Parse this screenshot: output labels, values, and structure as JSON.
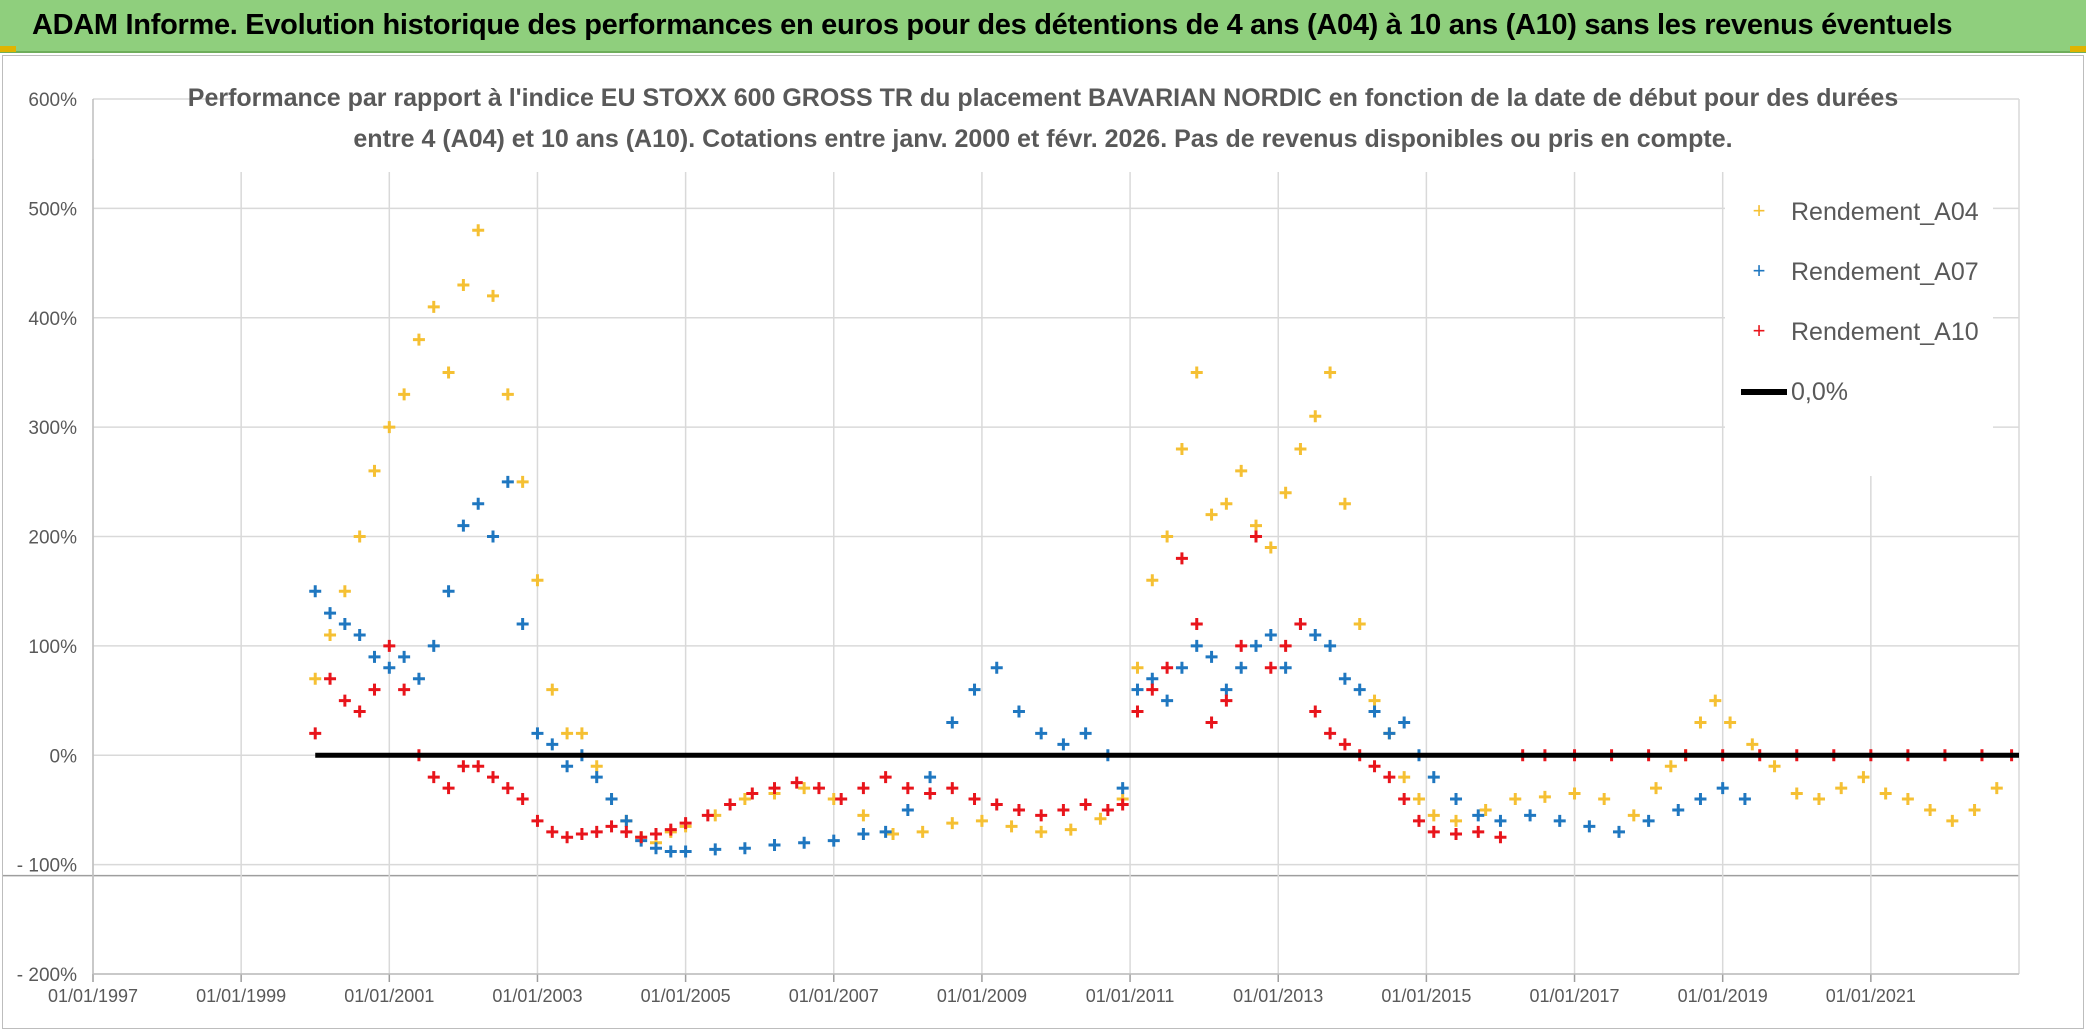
{
  "banner": {
    "title": "ADAM Informe. Evolution historique des performances en euros pour des détentions de 4 ans (A04) à 10 ans (A10) sans les revenus éventuels"
  },
  "colors": {
    "A04": "#f5c033",
    "A07": "#1f77c0",
    "A10": "#e8141b",
    "zero": "#000000",
    "grid": "#d9d9d9",
    "banner": "#8fcf7d"
  },
  "chart_data": {
    "type": "scatter",
    "title_lines": [
      "Performance par rapport à l'indice EU STOXX 600 GROSS TR  du placement BAVARIAN NORDIC en fonction de la date de début pour des durées",
      "entre 4 (A04) et 10 ans (A10). Cotations entre janv. 2000 et févr. 2026. Pas de revenus disponibles ou pris en compte."
    ],
    "xlabel": "",
    "ylabel": "",
    "x_range": [
      1997.0,
      2023.0
    ],
    "ylim": [
      -200,
      600
    ],
    "y_ticks": [
      {
        "v": 600,
        "label": "600%"
      },
      {
        "v": 500,
        "label": "500%"
      },
      {
        "v": 400,
        "label": "400%"
      },
      {
        "v": 300,
        "label": "300%"
      },
      {
        "v": 200,
        "label": "200%"
      },
      {
        "v": 100,
        "label": "100%"
      },
      {
        "v": 0,
        "label": "0%"
      },
      {
        "v": -100,
        "label": "- 100%"
      },
      {
        "v": -200,
        "label": "- 200%"
      }
    ],
    "x_ticks": [
      {
        "v": 1997.0,
        "label": "01/01/1997"
      },
      {
        "v": 1999.0,
        "label": "01/01/1999"
      },
      {
        "v": 2001.0,
        "label": "01/01/2001"
      },
      {
        "v": 2003.0,
        "label": "01/01/2003"
      },
      {
        "v": 2005.0,
        "label": "01/01/2005"
      },
      {
        "v": 2007.0,
        "label": "01/01/2007"
      },
      {
        "v": 2009.0,
        "label": "01/01/2009"
      },
      {
        "v": 2011.0,
        "label": "01/01/2011"
      },
      {
        "v": 2013.0,
        "label": "01/01/2013"
      },
      {
        "v": 2015.0,
        "label": "01/01/2015"
      },
      {
        "v": 2017.0,
        "label": "01/01/2017"
      },
      {
        "v": 2019.0,
        "label": "01/01/2019"
      },
      {
        "v": 2021.0,
        "label": "01/01/2021"
      }
    ],
    "legend": [
      {
        "key": "A04",
        "label": "Rendement_A04",
        "marker": "plus"
      },
      {
        "key": "A07",
        "label": "Rendement_A07",
        "marker": "plus"
      },
      {
        "key": "A10",
        "label": "Rendement_A10",
        "marker": "plus"
      },
      {
        "key": "zero",
        "label": "0,0%",
        "marker": "line"
      }
    ],
    "series": [
      {
        "name": "Rendement_A04",
        "key": "A04",
        "x": [
          2000.0,
          2000.2,
          2000.4,
          2000.6,
          2000.8,
          2001.0,
          2001.2,
          2001.4,
          2001.6,
          2001.8,
          2002.0,
          2002.2,
          2002.4,
          2002.6,
          2002.8,
          2003.0,
          2003.2,
          2003.4,
          2003.6,
          2003.8,
          2004.0,
          2004.2,
          2004.4,
          2004.6,
          2004.8,
          2005.0,
          2005.4,
          2005.8,
          2006.2,
          2006.6,
          2007.0,
          2007.4,
          2007.8,
          2008.2,
          2008.6,
          2009.0,
          2009.4,
          2009.8,
          2010.2,
          2010.6,
          2010.9,
          2011.1,
          2011.3,
          2011.5,
          2011.7,
          2011.9,
          2012.1,
          2012.3,
          2012.5,
          2012.7,
          2012.9,
          2013.1,
          2013.3,
          2013.5,
          2013.7,
          2013.9,
          2014.1,
          2014.3,
          2014.5,
          2014.7,
          2014.9,
          2015.1,
          2015.4,
          2015.8,
          2016.2,
          2016.6,
          2017.0,
          2017.4,
          2017.8,
          2018.1,
          2018.3,
          2018.5,
          2018.7,
          2018.9,
          2019.1,
          2019.4,
          2019.7,
          2020.0,
          2020.3,
          2020.6,
          2020.9,
          2021.2,
          2021.5,
          2021.8,
          2022.1,
          2022.4,
          2022.7
        ],
        "values": [
          70,
          110,
          150,
          200,
          260,
          300,
          330,
          380,
          410,
          350,
          430,
          480,
          420,
          330,
          250,
          160,
          60,
          20,
          20,
          -10,
          -40,
          -60,
          -75,
          -80,
          -70,
          -65,
          -55,
          -40,
          -35,
          -30,
          -40,
          -55,
          -72,
          -70,
          -62,
          -60,
          -65,
          -70,
          -68,
          -58,
          -40,
          80,
          160,
          200,
          280,
          350,
          220,
          230,
          260,
          210,
          190,
          240,
          280,
          310,
          350,
          230,
          120,
          50,
          20,
          -20,
          -40,
          -55,
          -60,
          -50,
          -40,
          -38,
          -35,
          -40,
          -55,
          -30,
          -10,
          0,
          30,
          50,
          30,
          10,
          -10,
          -35,
          -40,
          -30,
          -20,
          -35,
          -40,
          -50,
          -60,
          -50,
          -30
        ]
      },
      {
        "name": "Rendement_A07",
        "key": "A07",
        "x": [
          2000.0,
          2000.2,
          2000.4,
          2000.6,
          2000.8,
          2001.0,
          2001.2,
          2001.4,
          2001.6,
          2001.8,
          2002.0,
          2002.2,
          2002.4,
          2002.6,
          2002.8,
          2003.0,
          2003.2,
          2003.4,
          2003.6,
          2003.8,
          2004.0,
          2004.2,
          2004.4,
          2004.6,
          2004.8,
          2005.0,
          2005.4,
          2005.8,
          2006.2,
          2006.6,
          2007.0,
          2007.4,
          2007.7,
          2008.0,
          2008.3,
          2008.6,
          2008.9,
          2009.2,
          2009.5,
          2009.8,
          2010.1,
          2010.4,
          2010.7,
          2010.9,
          2011.1,
          2011.3,
          2011.5,
          2011.7,
          2011.9,
          2012.1,
          2012.3,
          2012.5,
          2012.7,
          2012.9,
          2013.1,
          2013.3,
          2013.5,
          2013.7,
          2013.9,
          2014.1,
          2014.3,
          2014.5,
          2014.7,
          2014.9,
          2015.1,
          2015.4,
          2015.7,
          2016.0,
          2016.4,
          2016.8,
          2017.2,
          2017.6,
          2018.0,
          2018.4,
          2018.7,
          2019.0,
          2019.3
        ],
        "values": [
          150,
          130,
          120,
          110,
          90,
          80,
          90,
          70,
          100,
          150,
          210,
          230,
          200,
          250,
          120,
          20,
          10,
          -10,
          0,
          -20,
          -40,
          -60,
          -78,
          -85,
          -88,
          -88,
          -86,
          -85,
          -82,
          -80,
          -78,
          -72,
          -70,
          -50,
          -20,
          30,
          60,
          80,
          40,
          20,
          10,
          20,
          0,
          -30,
          60,
          70,
          50,
          80,
          100,
          90,
          60,
          80,
          100,
          110,
          80,
          120,
          110,
          100,
          70,
          60,
          40,
          20,
          30,
          0,
          -20,
          -40,
          -55,
          -60,
          -55,
          -60,
          -65,
          -70,
          -60,
          -50,
          -40,
          -30,
          -40
        ]
      },
      {
        "name": "Rendement_A10",
        "key": "A10",
        "x": [
          2000.0,
          2000.2,
          2000.4,
          2000.6,
          2000.8,
          2001.0,
          2001.2,
          2001.4,
          2001.6,
          2001.8,
          2002.0,
          2002.2,
          2002.4,
          2002.6,
          2002.8,
          2003.0,
          2003.2,
          2003.4,
          2003.6,
          2003.8,
          2004.0,
          2004.2,
          2004.4,
          2004.6,
          2004.8,
          2005.0,
          2005.3,
          2005.6,
          2005.9,
          2006.2,
          2006.5,
          2006.8,
          2007.1,
          2007.4,
          2007.7,
          2008.0,
          2008.3,
          2008.6,
          2008.9,
          2009.2,
          2009.5,
          2009.8,
          2010.1,
          2010.4,
          2010.7,
          2010.9,
          2011.1,
          2011.3,
          2011.5,
          2011.7,
          2011.9,
          2012.1,
          2012.3,
          2012.5,
          2012.7,
          2012.9,
          2013.1,
          2013.3,
          2013.5,
          2013.7,
          2013.9,
          2014.1,
          2014.3,
          2014.5,
          2014.7,
          2014.9,
          2015.1,
          2015.4,
          2015.7,
          2016.0,
          2016.3,
          2016.6,
          2017.0,
          2017.5,
          2018.0,
          2018.5,
          2019.0,
          2019.5,
          2020.0,
          2020.5,
          2021.0,
          2021.5,
          2022.0,
          2022.5,
          2022.9
        ],
        "values": [
          20,
          70,
          50,
          40,
          60,
          100,
          60,
          0,
          -20,
          -30,
          -10,
          -10,
          -20,
          -30,
          -40,
          -60,
          -70,
          -75,
          -72,
          -70,
          -65,
          -70,
          -75,
          -72,
          -68,
          -62,
          -55,
          -45,
          -35,
          -30,
          -25,
          -30,
          -40,
          -30,
          -20,
          -30,
          -35,
          -30,
          -40,
          -45,
          -50,
          -55,
          -50,
          -45,
          -50,
          -45,
          40,
          60,
          80,
          180,
          120,
          30,
          50,
          100,
          200,
          80,
          100,
          120,
          40,
          20,
          10,
          0,
          -10,
          -20,
          -40,
          -60,
          -70,
          -72,
          -70,
          -75,
          0,
          0,
          0,
          0,
          0,
          0,
          0,
          0,
          0,
          0,
          0,
          0,
          0,
          0,
          0
        ]
      },
      {
        "name": "0,0%",
        "key": "zero",
        "x": [
          2000.0,
          2023.0
        ],
        "values": [
          0,
          0
        ]
      }
    ]
  }
}
